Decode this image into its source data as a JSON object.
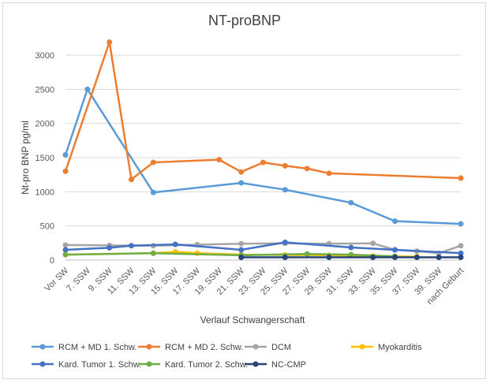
{
  "chart_data": {
    "type": "line",
    "title": "NT-proBNP",
    "xlabel": "Verlauf Schwangerschaft",
    "ylabel": "Nt-pro BNP pg/ml",
    "ylim": [
      0,
      3000
    ],
    "yticks": [
      0,
      500,
      1000,
      1500,
      2000,
      2500,
      3000
    ],
    "categories": [
      "Vor SW",
      "7. SSW",
      "9. SSW",
      "11. SSW",
      "13. SSW",
      "15. SSW",
      "17. SSW",
      "19. SSW",
      "21. SSW",
      "23. SSW",
      "25. SSW",
      "27. SSW",
      "29. SSW",
      "31. SSW",
      "33. SSW",
      "35. SSW",
      "37. SSW",
      "39. SSW",
      "nach Geburt"
    ],
    "legend_position": "bottom",
    "grid": true,
    "series": [
      {
        "name": "RCM + MD 1. Schw.",
        "color": "#5b9bd5",
        "points": [
          [
            0,
            1540
          ],
          [
            1,
            2500
          ],
          [
            4,
            990
          ],
          [
            8,
            1130
          ],
          [
            10,
            1030
          ],
          [
            13,
            840
          ],
          [
            15,
            570
          ],
          [
            18,
            530
          ]
        ]
      },
      {
        "name": "RCM + MD 2. Schw.",
        "color": "#ed7d31",
        "points": [
          [
            0,
            1300
          ],
          [
            2,
            3190
          ],
          [
            3,
            1180
          ],
          [
            4,
            1430
          ],
          [
            7,
            1470
          ],
          [
            8,
            1290
          ],
          [
            9,
            1430
          ],
          [
            10,
            1380
          ],
          [
            11,
            1340
          ],
          [
            12,
            1270
          ],
          [
            18,
            1200
          ]
        ]
      },
      {
        "name": "DCM",
        "color": "#a5a5a5",
        "points": [
          [
            0,
            220
          ],
          [
            2,
            215
          ],
          [
            4,
            210
          ],
          [
            6,
            225
          ],
          [
            8,
            240
          ],
          [
            10,
            245
          ],
          [
            12,
            240
          ],
          [
            14,
            245
          ],
          [
            15,
            150
          ],
          [
            16,
            130
          ],
          [
            17,
            100
          ],
          [
            18,
            210
          ]
        ]
      },
      {
        "name": "Myokarditis",
        "color": "#ffc000",
        "points": [
          [
            0,
            80
          ],
          [
            4,
            100
          ],
          [
            5,
            120
          ],
          [
            6,
            100
          ],
          [
            8,
            80
          ],
          [
            10,
            75
          ],
          [
            12,
            70
          ],
          [
            14,
            60
          ],
          [
            15,
            55
          ],
          [
            16,
            50
          ]
        ]
      },
      {
        "name": "Kard. Tumor 1. Schw.",
        "color": "#4472c4",
        "points": [
          [
            0,
            150
          ],
          [
            2,
            180
          ],
          [
            3,
            210
          ],
          [
            5,
            230
          ],
          [
            8,
            150
          ],
          [
            10,
            260
          ],
          [
            13,
            185
          ],
          [
            15,
            150
          ],
          [
            18,
            100
          ]
        ]
      },
      {
        "name": "Kard. Tumor 2. Schw.",
        "color": "#70ad47",
        "points": [
          [
            0,
            80
          ],
          [
            4,
            100
          ],
          [
            8,
            70
          ],
          [
            11,
            90
          ],
          [
            13,
            80
          ],
          [
            15,
            55
          ]
        ]
      },
      {
        "name": "NC-CMP",
        "color": "#264478",
        "points": [
          [
            8,
            40
          ],
          [
            10,
            40
          ],
          [
            12,
            40
          ],
          [
            14,
            40
          ],
          [
            15,
            40
          ],
          [
            16,
            40
          ],
          [
            17,
            40
          ],
          [
            18,
            40
          ]
        ]
      }
    ]
  }
}
